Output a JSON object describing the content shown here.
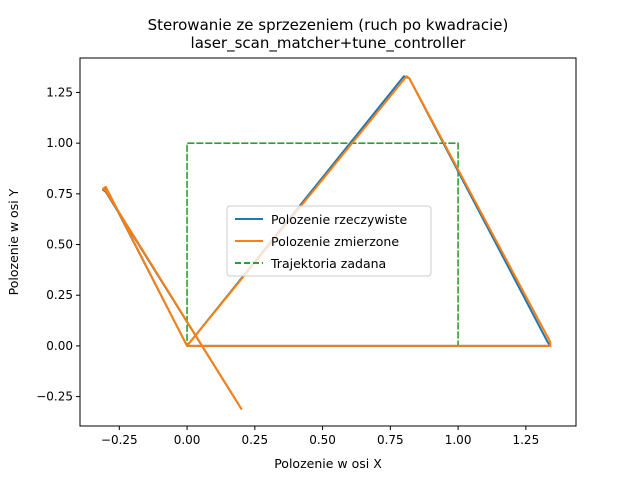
{
  "chart_data": {
    "type": "line",
    "title": "Sterowanie ze sprzezeniem (ruch po kwadracie)",
    "subtitle": "laser_scan_matcher+tune_controller",
    "xlabel": "Polozenie w osi X",
    "ylabel": "Polozenie w osi Y",
    "xlim": [
      -0.395,
      1.435
    ],
    "ylim": [
      -0.395,
      1.42
    ],
    "x_ticks": [
      -0.25,
      0.0,
      0.25,
      0.5,
      0.75,
      1.0,
      1.25
    ],
    "x_tick_labels": [
      "−0.25",
      "0.00",
      "0.25",
      "0.50",
      "0.75",
      "1.00",
      "1.25"
    ],
    "y_ticks": [
      -0.25,
      0.0,
      0.25,
      0.5,
      0.75,
      1.0,
      1.25
    ],
    "y_tick_labels": [
      "−0.25",
      "0.00",
      "0.25",
      "0.50",
      "0.75",
      "1.00",
      "1.25"
    ],
    "grid": false,
    "legend_position": "center",
    "series": [
      {
        "name": "Polozenie rzeczywiste",
        "color": "#1f77b4",
        "style": "solid",
        "x": [
          0.0,
          0.8,
          0.82,
          1.33,
          1.34,
          1.33,
          0.0,
          -0.3,
          -0.31,
          -0.3,
          0.2
        ],
        "y": [
          0.0,
          1.33,
          1.32,
          0.02,
          0.0,
          0.0,
          0.0,
          0.78,
          0.77,
          0.76,
          -0.31
        ]
      },
      {
        "name": "Polozenie zmierzone",
        "color": "#ff7f0e",
        "style": "solid",
        "x": [
          0.0,
          0.81,
          0.82,
          1.34,
          1.34,
          1.33,
          0.0,
          -0.3,
          -0.31,
          -0.3,
          0.2
        ],
        "y": [
          0.0,
          1.33,
          1.32,
          0.02,
          0.0,
          0.0,
          0.0,
          0.785,
          0.775,
          0.765,
          -0.31
        ]
      },
      {
        "name": "Trajektoria zadana",
        "color": "#2ca02c",
        "style": "dashed",
        "x": [
          0.0,
          1.0,
          1.0,
          0.0,
          0.0
        ],
        "y": [
          0.0,
          0.0,
          1.0,
          1.0,
          0.0
        ]
      }
    ]
  }
}
